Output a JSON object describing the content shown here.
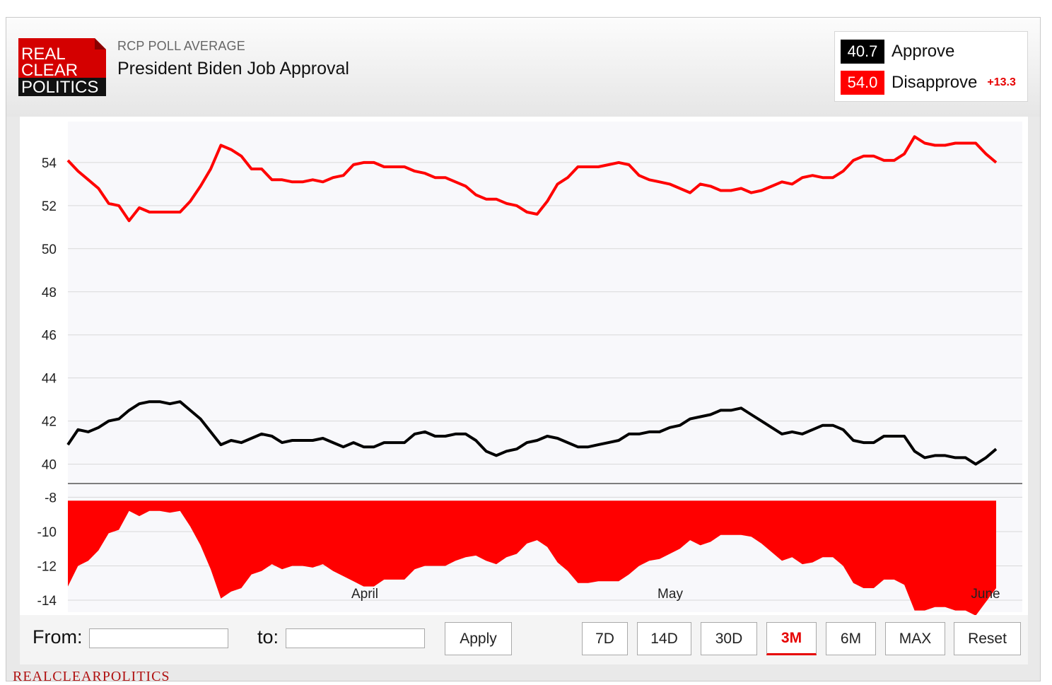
{
  "header": {
    "logo_lines": [
      "REAL",
      "CLEAR",
      "POLITICS"
    ],
    "kicker": "RCP POLL AVERAGE",
    "title": "President Biden Job Approval"
  },
  "legend": {
    "approve": {
      "value": "40.7",
      "label": "Approve",
      "color": "#000000"
    },
    "disapprove": {
      "value": "54.0",
      "label": "Disapprove",
      "color": "#ff0000"
    },
    "spread": "+13.3"
  },
  "controls": {
    "from_label": "From:",
    "to_label": "to:",
    "from_value": "",
    "to_value": "",
    "apply_label": "Apply",
    "ranges": [
      "7D",
      "14D",
      "30D",
      "3M",
      "6M",
      "MAX"
    ],
    "active_range": "3M",
    "reset_label": "Reset"
  },
  "footer": {
    "watermark": "REALCLEARPOLITICS"
  },
  "chart_data": {
    "type": "line",
    "title": "",
    "x_tick_labels": [
      "April",
      "May",
      "June"
    ],
    "main_y_ticks": [
      40,
      42,
      44,
      46,
      48,
      50,
      52,
      54
    ],
    "main_ylim": [
      39.1,
      55.9
    ],
    "spread_y_ticks": [
      -8,
      -10,
      -12,
      -14
    ],
    "spread_ylim": [
      -14.7,
      -7.2
    ],
    "grid": true,
    "series": [
      {
        "name": "Approve",
        "color": "#000000",
        "values": [
          40.9,
          41.6,
          41.5,
          41.7,
          42.0,
          42.1,
          42.5,
          42.8,
          42.9,
          42.9,
          42.8,
          42.9,
          42.5,
          42.1,
          41.5,
          40.9,
          41.1,
          41.0,
          41.2,
          41.4,
          41.3,
          41.0,
          41.1,
          41.1,
          41.1,
          41.2,
          41.0,
          40.8,
          41.0,
          40.8,
          40.8,
          41.0,
          41.0,
          41.0,
          41.4,
          41.5,
          41.3,
          41.3,
          41.4,
          41.4,
          41.1,
          40.6,
          40.4,
          40.6,
          40.7,
          41.0,
          41.1,
          41.3,
          41.2,
          41.0,
          40.8,
          40.8,
          40.9,
          41.0,
          41.1,
          41.4,
          41.4,
          41.5,
          41.5,
          41.7,
          41.8,
          42.1,
          42.2,
          42.3,
          42.5,
          42.5,
          42.6,
          42.3,
          42.0,
          41.7,
          41.4,
          41.5,
          41.4,
          41.6,
          41.8,
          41.8,
          41.6,
          41.1,
          41.0,
          41.0,
          41.3,
          41.3,
          41.3,
          40.6,
          40.3,
          40.4,
          40.4,
          40.3,
          40.3,
          40.0,
          40.3,
          40.7
        ]
      },
      {
        "name": "Disapprove",
        "color": "#ff0000",
        "values": [
          54.1,
          53.6,
          53.2,
          52.8,
          52.1,
          52.0,
          51.3,
          51.9,
          51.7,
          51.7,
          51.7,
          51.7,
          52.2,
          52.9,
          53.7,
          54.8,
          54.6,
          54.3,
          53.7,
          53.7,
          53.2,
          53.2,
          53.1,
          53.1,
          53.2,
          53.1,
          53.3,
          53.4,
          53.9,
          54.0,
          54.0,
          53.8,
          53.8,
          53.8,
          53.6,
          53.5,
          53.3,
          53.3,
          53.1,
          52.9,
          52.5,
          52.3,
          52.3,
          52.1,
          52.0,
          51.7,
          51.6,
          52.2,
          53.0,
          53.3,
          53.8,
          53.8,
          53.8,
          53.9,
          54.0,
          53.9,
          53.4,
          53.2,
          53.1,
          53.0,
          52.8,
          52.6,
          53.0,
          52.9,
          52.7,
          52.7,
          52.8,
          52.6,
          52.7,
          52.9,
          53.1,
          53.0,
          53.3,
          53.4,
          53.3,
          53.3,
          53.6,
          54.1,
          54.3,
          54.3,
          54.1,
          54.1,
          54.4,
          55.2,
          54.9,
          54.8,
          54.8,
          54.9,
          54.9,
          54.9,
          54.4,
          54.0
        ]
      },
      {
        "name": "Spread",
        "color": "#ff0000",
        "values": [
          -13.2,
          -12.0,
          -11.7,
          -11.1,
          -10.1,
          -9.9,
          -8.8,
          -9.1,
          -8.8,
          -8.8,
          -8.9,
          -8.8,
          -9.7,
          -10.8,
          -12.2,
          -13.9,
          -13.5,
          -13.3,
          -12.5,
          -12.3,
          -11.9,
          -12.2,
          -12.0,
          -12.0,
          -12.1,
          -11.9,
          -12.3,
          -12.6,
          -12.9,
          -13.2,
          -13.2,
          -12.8,
          -12.8,
          -12.8,
          -12.2,
          -12.0,
          -12.0,
          -12.0,
          -11.7,
          -11.5,
          -11.4,
          -11.7,
          -11.9,
          -11.5,
          -11.3,
          -10.7,
          -10.5,
          -10.9,
          -11.8,
          -12.3,
          -13.0,
          -13.0,
          -12.9,
          -12.9,
          -12.9,
          -12.5,
          -12.0,
          -11.7,
          -11.6,
          -11.3,
          -11.0,
          -10.5,
          -10.8,
          -10.6,
          -10.2,
          -10.2,
          -10.2,
          -10.3,
          -10.7,
          -11.2,
          -11.7,
          -11.5,
          -11.9,
          -11.8,
          -11.5,
          -11.5,
          -12.0,
          -13.0,
          -13.3,
          -13.3,
          -12.8,
          -12.8,
          -13.1,
          -14.6,
          -14.6,
          -14.4,
          -14.4,
          -14.6,
          -14.6,
          -14.9,
          -14.1,
          -13.3
        ]
      }
    ]
  }
}
